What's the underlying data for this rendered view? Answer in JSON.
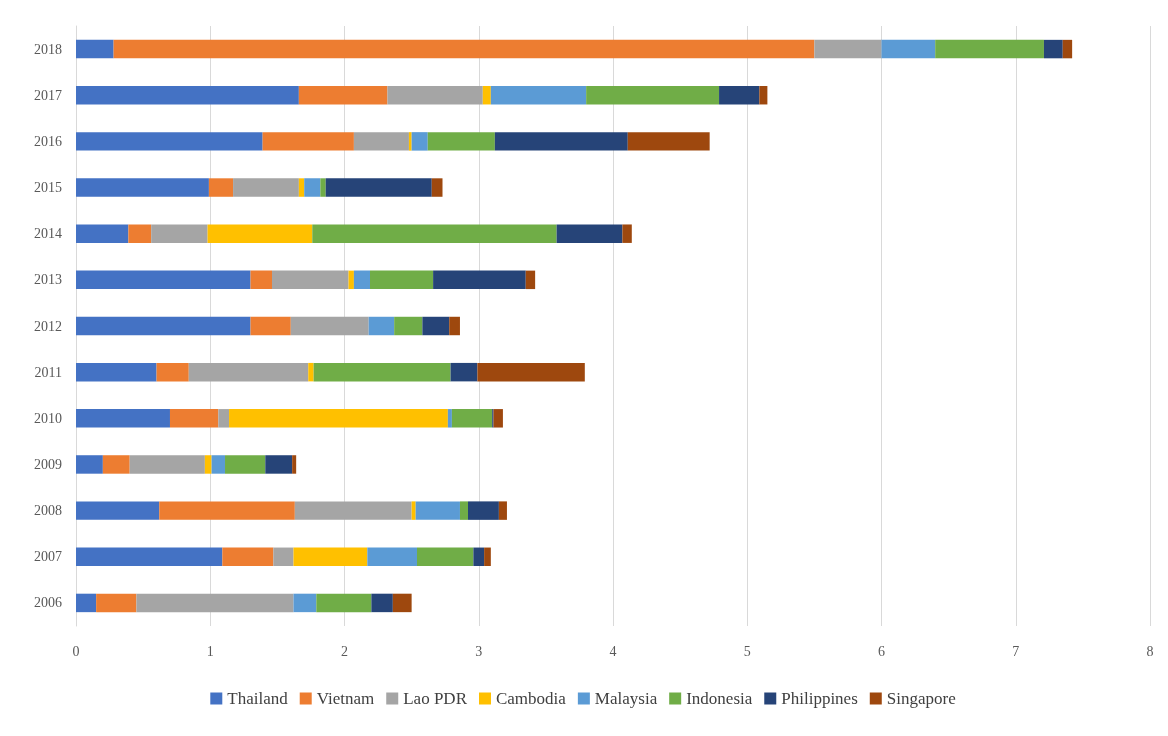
{
  "chart_data": {
    "type": "bar",
    "orientation": "horizontal",
    "stacked": true,
    "categories": [
      "2018",
      "2017",
      "2016",
      "2015",
      "2014",
      "2013",
      "2012",
      "2011",
      "2010",
      "2009",
      "2008",
      "2007",
      "2006"
    ],
    "series": [
      {
        "name": "Thailand",
        "color": "#4472c4",
        "values": [
          0.28,
          1.66,
          1.39,
          0.99,
          0.39,
          1.3,
          1.3,
          0.6,
          0.7,
          0.2,
          0.62,
          1.09,
          0.15
        ]
      },
      {
        "name": "Vietnam",
        "color": "#ed7d31",
        "values": [
          5.22,
          0.66,
          0.68,
          0.18,
          0.17,
          0.16,
          0.3,
          0.24,
          0.36,
          0.2,
          1.01,
          0.38,
          0.3
        ]
      },
      {
        "name": "Lao PDR",
        "color": "#a5a5a5",
        "values": [
          0.5,
          0.71,
          0.41,
          0.49,
          0.42,
          0.57,
          0.58,
          0.89,
          0.08,
          0.56,
          0.87,
          0.15,
          1.17
        ]
      },
      {
        "name": "Cambodia",
        "color": "#ffc000",
        "values": [
          0,
          0.06,
          0.02,
          0.04,
          0.78,
          0.04,
          0,
          0.04,
          1.63,
          0.05,
          0.03,
          0.55,
          0
        ]
      },
      {
        "name": "Malaysia",
        "color": "#5b9bd5",
        "values": [
          0.4,
          0.71,
          0.12,
          0.12,
          0,
          0.12,
          0.19,
          0,
          0.03,
          0.1,
          0.33,
          0.37,
          0.17
        ]
      },
      {
        "name": "Indonesia",
        "color": "#70ad47",
        "values": [
          0.81,
          0.99,
          0.5,
          0.04,
          1.82,
          0.47,
          0.21,
          1.02,
          0.3,
          0.3,
          0.06,
          0.42,
          0.41
        ]
      },
      {
        "name": "Philippines",
        "color": "#264478",
        "values": [
          0.14,
          0.3,
          0.99,
          0.79,
          0.49,
          0.69,
          0.2,
          0.2,
          0.01,
          0.2,
          0.23,
          0.08,
          0.16
        ]
      },
      {
        "name": "Singapore",
        "color": "#9e480e",
        "values": [
          0.07,
          0.06,
          0.61,
          0.08,
          0.07,
          0.07,
          0.08,
          0.8,
          0.07,
          0.03,
          0.06,
          0.05,
          0.14
        ]
      }
    ],
    "xlim": [
      0,
      8
    ],
    "xticks": [
      0,
      1,
      2,
      3,
      4,
      5,
      6,
      7,
      8
    ],
    "grid": "x",
    "legend": "bottom"
  }
}
